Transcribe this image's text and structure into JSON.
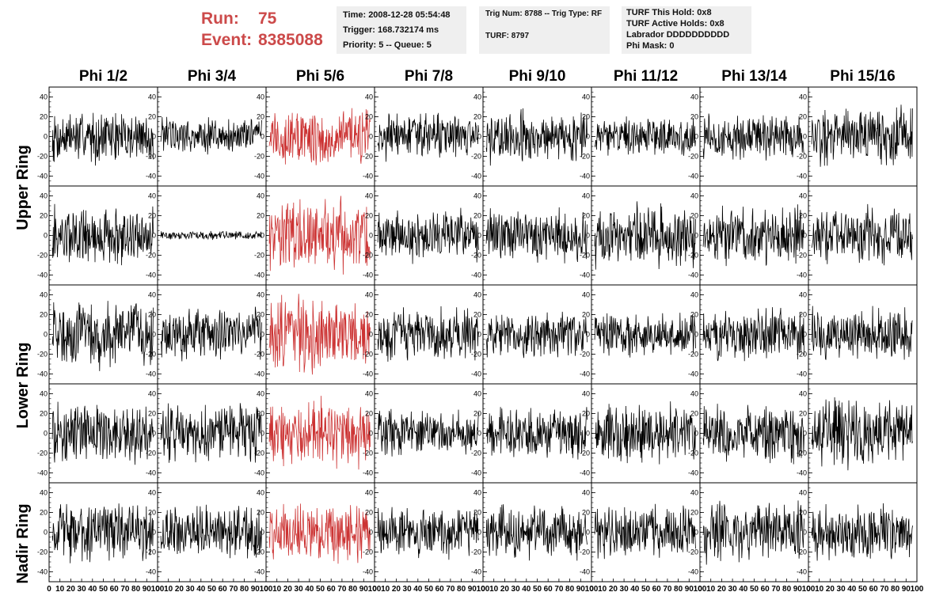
{
  "header": {
    "run_label": "Run:",
    "run_value": "75",
    "event_label": "Event:",
    "event_value": "8385088",
    "info_box_1": {
      "time": "Time: 2008-12-28 05:54:48",
      "trigger": "Trigger: 168.732174 ms",
      "priority": "Priority: 5 -- Queue: 5"
    },
    "info_box_2": {
      "trig": "Trig Num: 8788 -- Trig Type: RF",
      "turf": "TURF: 8797"
    },
    "info_box_3": {
      "this_hold": "TURF This Hold: 0x8",
      "active_holds": "TURF Active Holds: 0x8",
      "labrador": "Labrador DDDDDDDDDD",
      "phi_mask": "Phi Mask: 0"
    }
  },
  "columns": [
    "Phi 1/2",
    "Phi 3/4",
    "Phi 5/6",
    "Phi 7/8",
    "Phi 9/10",
    "Phi 11/12",
    "Phi 13/14",
    "Phi 15/16"
  ],
  "ring_labels": [
    "Upper Ring",
    "Lower Ring",
    "Nadir Ring"
  ],
  "colors": {
    "trace": "#000000",
    "triggered_trace": "#cc3333",
    "run_text": "#cc4a4a",
    "info_box_bg": "#efefef"
  },
  "chart_data": {
    "type": "line",
    "description_rows": [
      "upper-a",
      "upper-b",
      "lower-a",
      "lower-b",
      "nadir"
    ],
    "xlim": [
      0,
      100
    ],
    "ylim": [
      -50,
      50
    ],
    "x_ticks": [
      "0",
      "10",
      "20",
      "30",
      "40",
      "50",
      "60",
      "70",
      "80",
      "90",
      "100"
    ],
    "y_ticks": [
      "40",
      "20",
      "0",
      "-20",
      "-40"
    ],
    "triggered_column": 2,
    "panels": [
      {
        "row": 0,
        "col": 0,
        "amplitude": 25,
        "color": "black"
      },
      {
        "row": 0,
        "col": 1,
        "amplitude": 18,
        "color": "black"
      },
      {
        "row": 0,
        "col": 2,
        "amplitude": 28,
        "color": "red"
      },
      {
        "row": 0,
        "col": 3,
        "amplitude": 22,
        "color": "black"
      },
      {
        "row": 0,
        "col": 4,
        "amplitude": 25,
        "color": "black"
      },
      {
        "row": 0,
        "col": 5,
        "amplitude": 18,
        "color": "black"
      },
      {
        "row": 0,
        "col": 6,
        "amplitude": 22,
        "color": "black"
      },
      {
        "row": 0,
        "col": 7,
        "amplitude": 28,
        "color": "black"
      },
      {
        "row": 1,
        "col": 0,
        "amplitude": 28,
        "color": "black"
      },
      {
        "row": 1,
        "col": 1,
        "amplitude": 4,
        "color": "black"
      },
      {
        "row": 1,
        "col": 2,
        "amplitude": 35,
        "color": "red"
      },
      {
        "row": 1,
        "col": 3,
        "amplitude": 25,
        "color": "black"
      },
      {
        "row": 1,
        "col": 4,
        "amplitude": 25,
        "color": "black"
      },
      {
        "row": 1,
        "col": 5,
        "amplitude": 30,
        "color": "black"
      },
      {
        "row": 1,
        "col": 6,
        "amplitude": 28,
        "color": "black"
      },
      {
        "row": 1,
        "col": 7,
        "amplitude": 28,
        "color": "black"
      },
      {
        "row": 2,
        "col": 0,
        "amplitude": 32,
        "color": "black"
      },
      {
        "row": 2,
        "col": 1,
        "amplitude": 25,
        "color": "black"
      },
      {
        "row": 2,
        "col": 2,
        "amplitude": 35,
        "color": "red"
      },
      {
        "row": 2,
        "col": 3,
        "amplitude": 25,
        "color": "black"
      },
      {
        "row": 2,
        "col": 4,
        "amplitude": 22,
        "color": "black"
      },
      {
        "row": 2,
        "col": 5,
        "amplitude": 22,
        "color": "black"
      },
      {
        "row": 2,
        "col": 6,
        "amplitude": 25,
        "color": "black"
      },
      {
        "row": 2,
        "col": 7,
        "amplitude": 25,
        "color": "black"
      },
      {
        "row": 3,
        "col": 0,
        "amplitude": 28,
        "color": "black"
      },
      {
        "row": 3,
        "col": 1,
        "amplitude": 28,
        "color": "black"
      },
      {
        "row": 3,
        "col": 2,
        "amplitude": 32,
        "color": "red"
      },
      {
        "row": 3,
        "col": 3,
        "amplitude": 22,
        "color": "black"
      },
      {
        "row": 3,
        "col": 4,
        "amplitude": 25,
        "color": "black"
      },
      {
        "row": 3,
        "col": 5,
        "amplitude": 28,
        "color": "black"
      },
      {
        "row": 3,
        "col": 6,
        "amplitude": 28,
        "color": "black"
      },
      {
        "row": 3,
        "col": 7,
        "amplitude": 32,
        "color": "black"
      },
      {
        "row": 4,
        "col": 0,
        "amplitude": 28,
        "color": "black"
      },
      {
        "row": 4,
        "col": 1,
        "amplitude": 25,
        "color": "black"
      },
      {
        "row": 4,
        "col": 2,
        "amplitude": 28,
        "color": "red"
      },
      {
        "row": 4,
        "col": 3,
        "amplitude": 25,
        "color": "black"
      },
      {
        "row": 4,
        "col": 4,
        "amplitude": 25,
        "color": "black"
      },
      {
        "row": 4,
        "col": 5,
        "amplitude": 25,
        "color": "black"
      },
      {
        "row": 4,
        "col": 6,
        "amplitude": 28,
        "color": "black"
      },
      {
        "row": 4,
        "col": 7,
        "amplitude": 28,
        "color": "black"
      }
    ]
  }
}
